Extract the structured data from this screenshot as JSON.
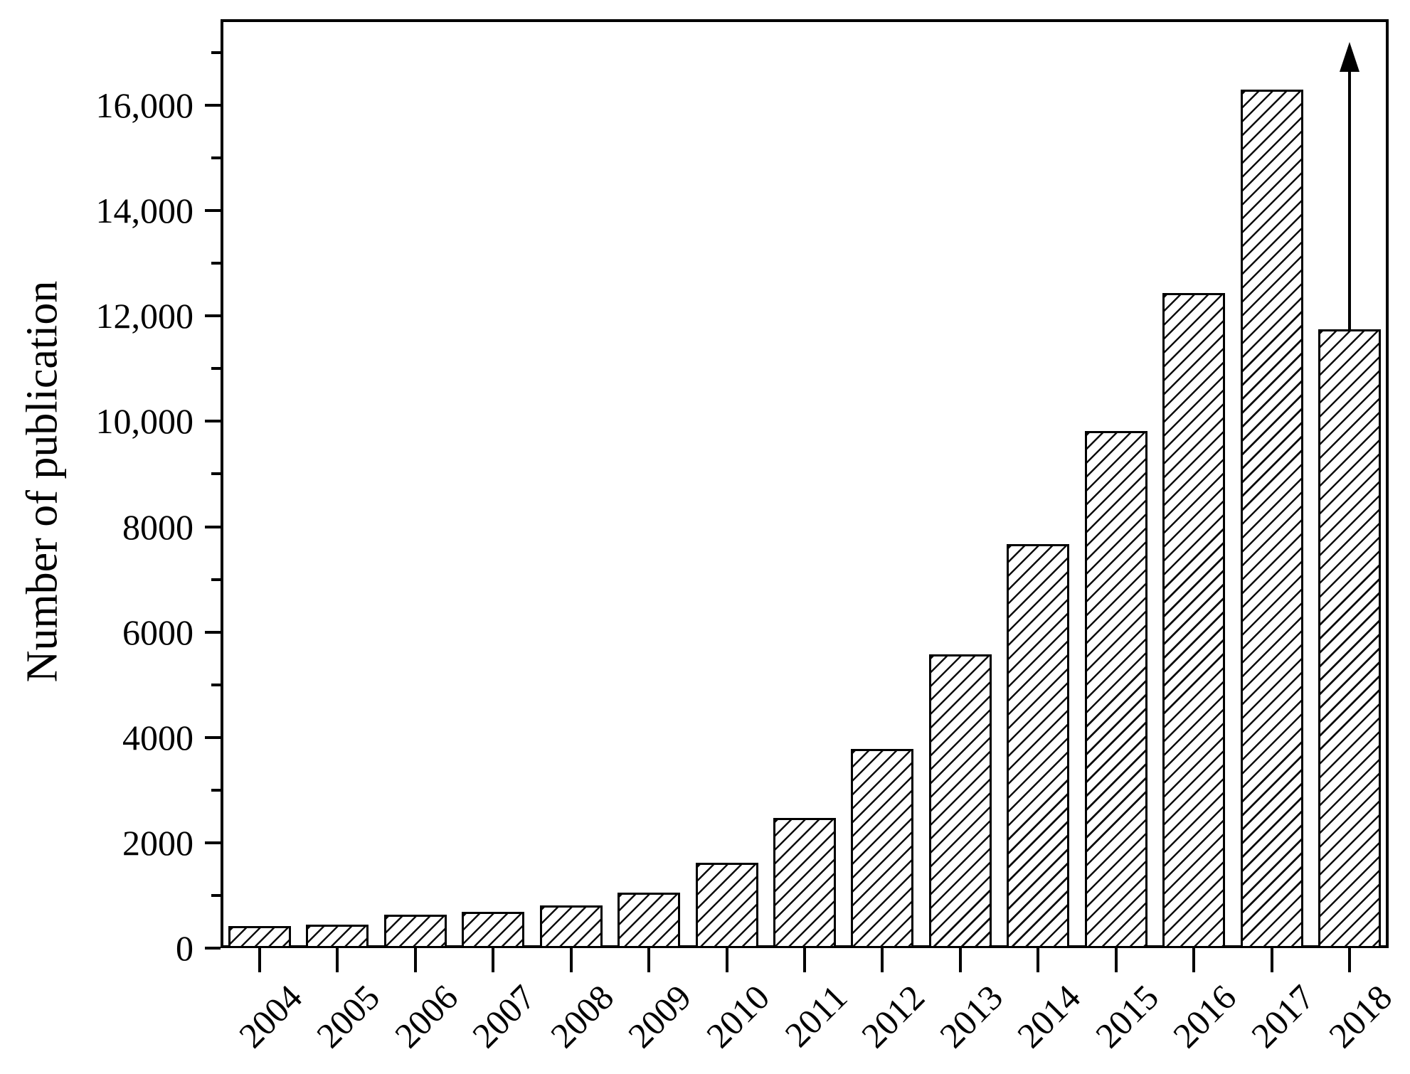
{
  "figure": {
    "background": "#ffffff",
    "ink": "#000000"
  },
  "chart_data": {
    "type": "bar",
    "title": "",
    "xlabel": "",
    "ylabel": "Number of publication",
    "categories": [
      "2004",
      "2005",
      "2006",
      "2007",
      "2008",
      "2009",
      "2010",
      "2011",
      "2012",
      "2013",
      "2014",
      "2015",
      "2016",
      "2017",
      "2018"
    ],
    "values": [
      420,
      440,
      640,
      690,
      810,
      1050,
      1620,
      2470,
      3780,
      5580,
      7670,
      9820,
      12430,
      16300,
      11750
    ],
    "ylim": [
      0,
      17635
    ],
    "y_major_tick_values": [
      0,
      2000,
      4000,
      6000,
      8000,
      10000,
      12000,
      14000,
      16000
    ],
    "y_tick_labels": [
      "0",
      "2000",
      "4000",
      "6000",
      "8000",
      "10,000",
      "12,000",
      "14,000",
      "16,000"
    ],
    "y_minor_tick_values": [
      1000,
      3000,
      5000,
      7000,
      9000,
      11000,
      13000,
      15000,
      17000
    ],
    "grid": false,
    "legend": false,
    "frame": "full-box",
    "bar_fill": "#ffffff",
    "bar_edge_color": "#000000",
    "bar_hatch": "forward-diagonal",
    "annotations": [
      {
        "type": "vertical-up-arrow",
        "category": "2018",
        "from_value": 11750,
        "to_value": 17200,
        "color": "#000000"
      }
    ]
  }
}
